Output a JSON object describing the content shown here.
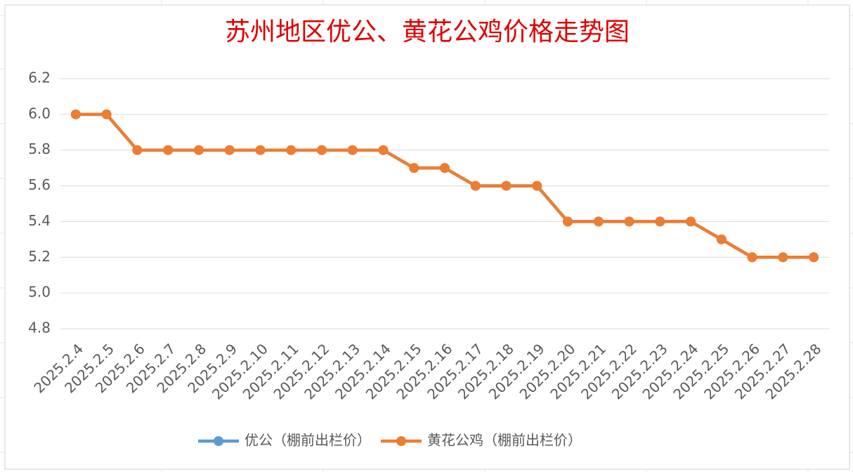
{
  "chart_data": {
    "type": "line",
    "title": "苏州地区优公、黄花公鸡价格走势图",
    "categories": [
      "2025.2.4",
      "2025.2.5",
      "2025.2.6",
      "2025.2.7",
      "2025.2.8",
      "2025.2.9",
      "2025.2.10",
      "2025.2.11",
      "2025.2.12",
      "2025.2.13",
      "2025.2.14",
      "2025.2.15",
      "2025.2.16",
      "2025.2.17",
      "2025.2.18",
      "2025.2.19",
      "2025.2.20",
      "2025.2.21",
      "2025.2.22",
      "2025.2.23",
      "2025.2.24",
      "2025.2.25",
      "2025.2.26",
      "2025.2.27",
      "2025.2.28"
    ],
    "series": [
      {
        "name": "优公（棚前出栏价）",
        "color": "#5b9bd5",
        "values": [
          6.0,
          6.0,
          5.8,
          5.8,
          5.8,
          5.8,
          5.8,
          5.8,
          5.8,
          5.8,
          5.8,
          5.7,
          5.7,
          5.6,
          5.6,
          5.6,
          5.4,
          5.4,
          5.4,
          5.4,
          5.4,
          5.3,
          5.2,
          5.2,
          5.2
        ]
      },
      {
        "name": "黄花公鸡（棚前出栏价）",
        "color": "#ed7d31",
        "values": [
          6.0,
          6.0,
          5.8,
          5.8,
          5.8,
          5.8,
          5.8,
          5.8,
          5.8,
          5.8,
          5.8,
          5.7,
          5.7,
          5.6,
          5.6,
          5.6,
          5.4,
          5.4,
          5.4,
          5.4,
          5.4,
          5.3,
          5.2,
          5.2,
          5.2
        ]
      }
    ],
    "ylim": [
      4.8,
      6.2
    ],
    "yticks": [
      4.8,
      {
        "value": 5.0,
        "label": "5.0"
      },
      5.2,
      5.4,
      5.6,
      5.8,
      {
        "value": 6.0,
        "label": "6.0"
      },
      6.2
    ],
    "grid": true,
    "legend": "bottom"
  }
}
